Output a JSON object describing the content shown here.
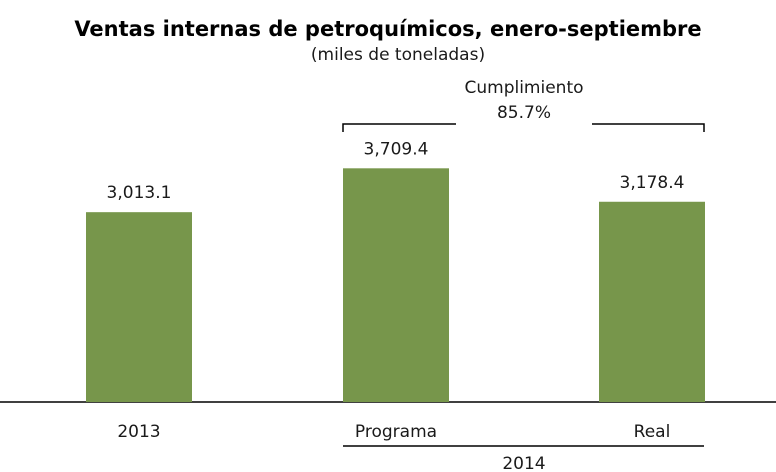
{
  "chart_data": {
    "type": "bar",
    "title": "Ventas internas de petroquímicos, enero-septiembre",
    "subtitle": "(miles de toneladas)",
    "categories": [
      "2013",
      "Programa",
      "Real"
    ],
    "values": [
      3013.1,
      3709.4,
      3178.4
    ],
    "value_labels": [
      "3,013.1",
      "3,709.4",
      "3,178.4"
    ],
    "color": "#77964b",
    "ylim": [
      0,
      4000
    ],
    "group_label": "2014",
    "annotation": {
      "text": "Cumplimiento",
      "value_label": "85.7%"
    }
  }
}
